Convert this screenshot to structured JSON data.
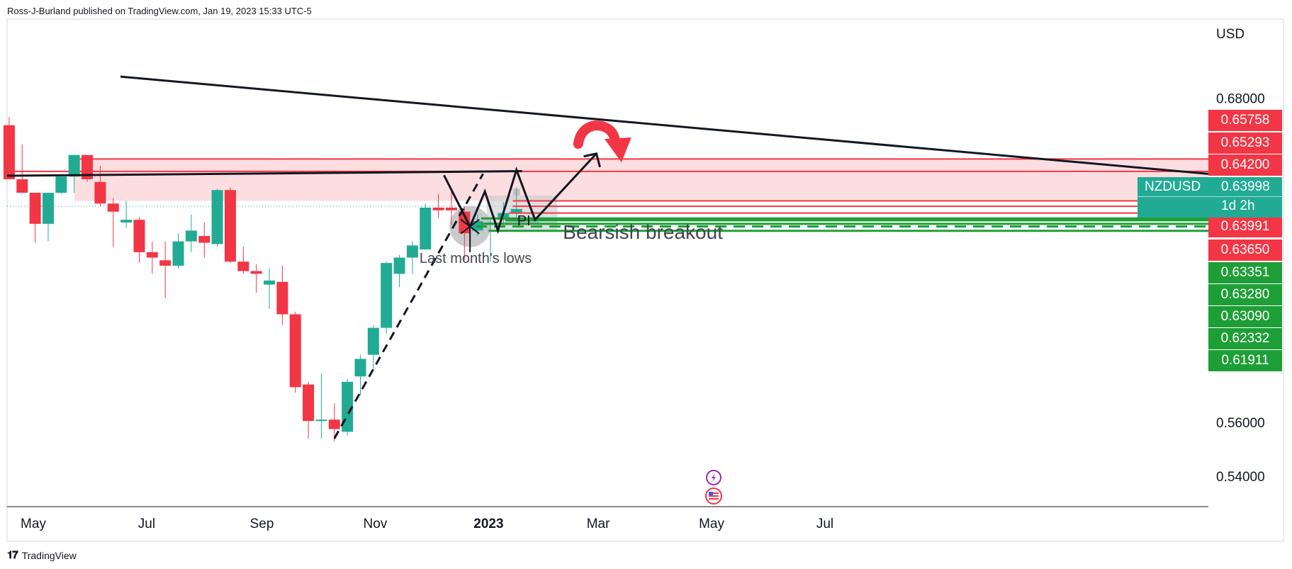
{
  "header": {
    "published_by": "Ross-J-Burland published on TradingView.com, Jan 19, 2023 15:33 UTC-5"
  },
  "footer": {
    "brand": "TradingView"
  },
  "colors": {
    "up": "#22ab94",
    "down": "#f23645",
    "zone": "#fbd3d6",
    "support": "#1e9e37"
  },
  "chart_data": {
    "type": "candlestick",
    "symbol": "NZDUSD",
    "timeframe": "weekly",
    "currency_label": "USD",
    "y_range": [
      0.5335,
      0.6925
    ],
    "y_ticks": [
      "0.68000",
      "0.56000",
      "0.54000"
    ],
    "x_ticks": [
      {
        "label": "May",
        "date": "2022-05-01"
      },
      {
        "label": "Jul",
        "date": "2022-07-01"
      },
      {
        "label": "Sep",
        "date": "2022-09-01"
      },
      {
        "label": "Nov",
        "date": "2022-11-01"
      },
      {
        "label": "2023",
        "date": "2023-01-01",
        "bold": true
      },
      {
        "label": "Mar",
        "date": "2023-03-01"
      },
      {
        "label": "May",
        "date": "2023-05-01"
      },
      {
        "label": "Jul",
        "date": "2023-07-01"
      }
    ],
    "candles": [
      {
        "date": "2022-04-18",
        "o": 0.67,
        "h": 0.673,
        "l": 0.65,
        "c": 0.65
      },
      {
        "date": "2022-04-25",
        "o": 0.65,
        "h": 0.663,
        "l": 0.645,
        "c": 0.645
      },
      {
        "date": "2022-05-02",
        "o": 0.645,
        "h": 0.645,
        "l": 0.6265,
        "c": 0.6335
      },
      {
        "date": "2022-05-09",
        "o": 0.6335,
        "h": 0.645,
        "l": 0.627,
        "c": 0.645
      },
      {
        "date": "2022-05-16",
        "o": 0.645,
        "h": 0.65,
        "l": 0.6445,
        "c": 0.651
      },
      {
        "date": "2022-05-23",
        "o": 0.651,
        "h": 0.659,
        "l": 0.645,
        "c": 0.659
      },
      {
        "date": "2022-05-30",
        "o": 0.659,
        "h": 0.659,
        "l": 0.649,
        "c": 0.65
      },
      {
        "date": "2022-06-06",
        "o": 0.649,
        "h": 0.655,
        "l": 0.64,
        "c": 0.641
      },
      {
        "date": "2022-06-13",
        "o": 0.641,
        "h": 0.643,
        "l": 0.625,
        "c": 0.638
      },
      {
        "date": "2022-06-20",
        "o": 0.634,
        "h": 0.642,
        "l": 0.632,
        "c": 0.635
      },
      {
        "date": "2022-06-27",
        "o": 0.635,
        "h": 0.636,
        "l": 0.619,
        "c": 0.623
      },
      {
        "date": "2022-07-04",
        "o": 0.623,
        "h": 0.627,
        "l": 0.615,
        "c": 0.621
      },
      {
        "date": "2022-07-11",
        "o": 0.62,
        "h": 0.627,
        "l": 0.606,
        "c": 0.618
      },
      {
        "date": "2022-07-18",
        "o": 0.618,
        "h": 0.63,
        "l": 0.617,
        "c": 0.627
      },
      {
        "date": "2022-07-25",
        "o": 0.627,
        "h": 0.637,
        "l": 0.623,
        "c": 0.631
      },
      {
        "date": "2022-08-01",
        "o": 0.629,
        "h": 0.634,
        "l": 0.621,
        "c": 0.6265
      },
      {
        "date": "2022-08-08",
        "o": 0.626,
        "h": 0.6465,
        "l": 0.625,
        "c": 0.646
      },
      {
        "date": "2022-08-15",
        "o": 0.646,
        "h": 0.647,
        "l": 0.619,
        "c": 0.6195
      },
      {
        "date": "2022-08-22",
        "o": 0.6195,
        "h": 0.625,
        "l": 0.615,
        "c": 0.616
      },
      {
        "date": "2022-08-29",
        "o": 0.616,
        "h": 0.6185,
        "l": 0.608,
        "c": 0.615
      },
      {
        "date": "2022-09-05",
        "o": 0.611,
        "h": 0.617,
        "l": 0.602,
        "c": 0.6125
      },
      {
        "date": "2022-09-12",
        "o": 0.612,
        "h": 0.618,
        "l": 0.596,
        "c": 0.6
      },
      {
        "date": "2022-09-19",
        "o": 0.6,
        "h": 0.601,
        "l": 0.571,
        "c": 0.573
      },
      {
        "date": "2022-09-26",
        "o": 0.574,
        "h": 0.575,
        "l": 0.554,
        "c": 0.5605
      },
      {
        "date": "2022-10-03",
        "o": 0.5605,
        "h": 0.578,
        "l": 0.554,
        "c": 0.561
      },
      {
        "date": "2022-10-10",
        "o": 0.561,
        "h": 0.567,
        "l": 0.553,
        "c": 0.5575
      },
      {
        "date": "2022-10-17",
        "o": 0.5565,
        "h": 0.576,
        "l": 0.555,
        "c": 0.575
      },
      {
        "date": "2022-10-24",
        "o": 0.577,
        "h": 0.585,
        "l": 0.57,
        "c": 0.5835
      },
      {
        "date": "2022-10-31",
        "o": 0.585,
        "h": 0.596,
        "l": 0.58,
        "c": 0.595
      },
      {
        "date": "2022-11-07",
        "o": 0.595,
        "h": 0.6195,
        "l": 0.593,
        "c": 0.619
      },
      {
        "date": "2022-11-14",
        "o": 0.615,
        "h": 0.622,
        "l": 0.61,
        "c": 0.621
      },
      {
        "date": "2022-11-21",
        "o": 0.621,
        "h": 0.627,
        "l": 0.615,
        "c": 0.6255
      },
      {
        "date": "2022-11-28",
        "o": 0.624,
        "h": 0.641,
        "l": 0.624,
        "c": 0.6395
      },
      {
        "date": "2022-12-05",
        "o": 0.6395,
        "h": 0.6445,
        "l": 0.6355,
        "c": 0.6385
      },
      {
        "date": "2022-12-12",
        "o": 0.6395,
        "h": 0.6455,
        "l": 0.633,
        "c": 0.6385
      },
      {
        "date": "2022-12-19",
        "o": 0.638,
        "h": 0.64,
        "l": 0.62,
        "c": 0.63
      },
      {
        "date": "2022-12-26",
        "o": 0.631,
        "h": 0.637,
        "l": 0.629,
        "c": 0.6345
      },
      {
        "date": "2023-01-02",
        "o": 0.634,
        "h": 0.6355,
        "l": 0.6195,
        "c": 0.634
      },
      {
        "date": "2023-01-09",
        "o": 0.635,
        "h": 0.6415,
        "l": 0.633,
        "c": 0.6375
      },
      {
        "date": "2023-01-16",
        "o": 0.6375,
        "h": 0.647,
        "l": 0.636,
        "c": 0.639
      }
    ],
    "price_labels": [
      {
        "text": "0.65758",
        "value": 0.65758,
        "color": "#f23645"
      },
      {
        "text": "0.65293",
        "value": 0.65293,
        "color": "#f23645"
      },
      {
        "text": "0.64200",
        "value": 0.642,
        "color": "#f23645"
      },
      {
        "text": "0.63991",
        "value": 0.63991,
        "color": "#f23645"
      },
      {
        "text": "0.63650",
        "value": 0.6365,
        "color": "#f23645"
      },
      {
        "text": "0.63351",
        "value": 0.63351,
        "color": "#1e9e37"
      },
      {
        "text": "0.63280",
        "value": 0.6328,
        "color": "#1e9e37"
      },
      {
        "text": "0.63090",
        "value": 0.6309,
        "color": "#1e9e37"
      },
      {
        "text": "0.62332",
        "value": 0.62332,
        "color": "#1e9e37"
      },
      {
        "text": "0.61911",
        "value": 0.61911,
        "color": "#1e9e37"
      }
    ],
    "symbol_box": {
      "symbol": "NZDUSD",
      "price": "0.63998",
      "time": "1d 2h"
    },
    "resistance_zone": {
      "from": 0.642,
      "to": 0.6575,
      "start_date": "2022-05-23"
    },
    "annotations": [
      {
        "text": "Bearsish breakout"
      },
      {
        "text": "Last month's lows"
      },
      {
        "text": "PI"
      }
    ]
  }
}
